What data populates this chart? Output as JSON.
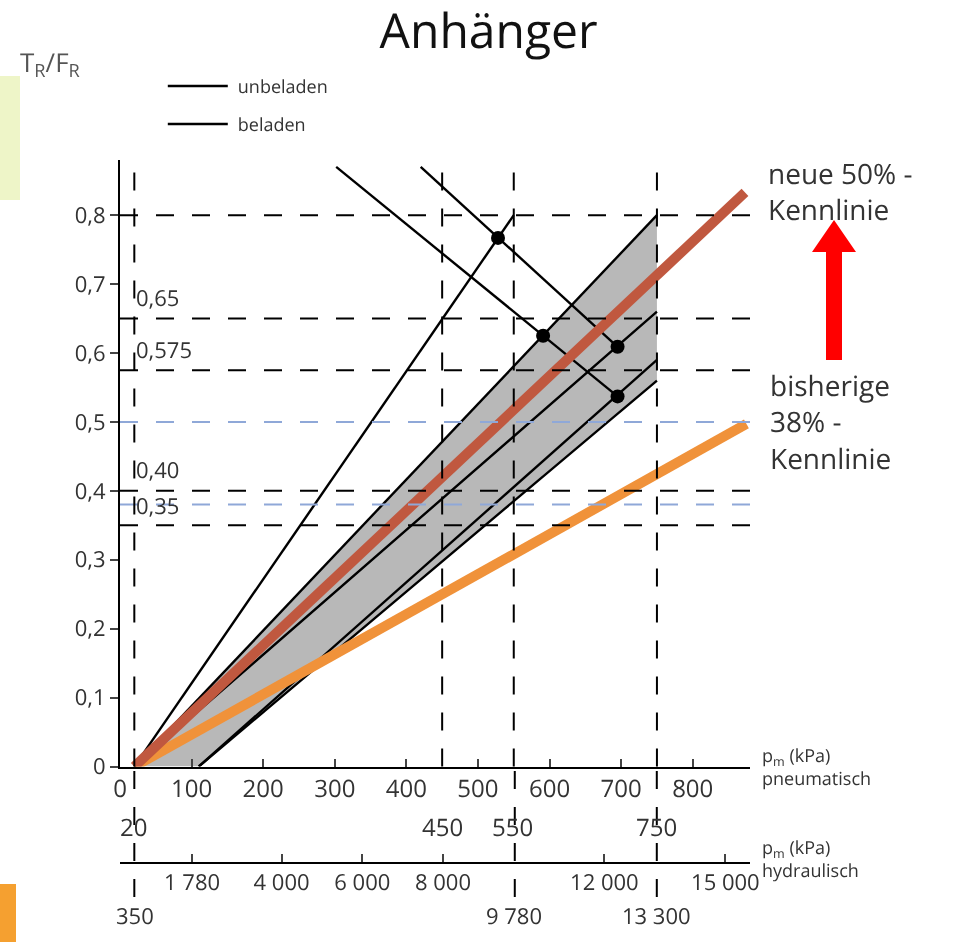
{
  "chart_data": {
    "type": "line",
    "title": "Anhänger",
    "ylabel": "T$_{R}$/F$_{R}$",
    "xlabel": "p$_{m}$ (kPa)\npneumatisch",
    "x2label": "p$_{m}$ (kPa)\nhydraulisch",
    "xlim": [
      0,
      880
    ],
    "xticks": [
      0,
      100,
      200,
      300,
      400,
      500,
      600,
      700,
      800
    ],
    "x2lim": [
      -5,
      15610
    ],
    "x2ticks": [
      {
        "value": 1780,
        "label": "1 780"
      },
      {
        "value": 4000,
        "label": "4 000"
      },
      {
        "value": 6000,
        "label": "6 000"
      },
      {
        "value": 8000,
        "label": "8 000"
      },
      {
        "value": 12000,
        "label": "12 000"
      },
      {
        "value": 15000,
        "label": "15 000"
      }
    ],
    "ylim": [
      0,
      0.88
    ],
    "yticks": [
      0,
      {
        "value": 0.1,
        "label": "0,1"
      },
      {
        "value": 0.2,
        "label": "0,2"
      },
      {
        "value": 0.3,
        "label": "0,3"
      },
      {
        "value": 0.4,
        "label": "0,4"
      },
      {
        "value": 0.5,
        "label": "0,5"
      },
      {
        "value": 0.6,
        "label": "0,6"
      },
      {
        "value": 0.7,
        "label": "0,7"
      },
      {
        "value": 0.8,
        "label": "0,8"
      }
    ],
    "grid": false,
    "legend": "top left",
    "ref_lines": [
      {
        "axis": "y",
        "value": 0.8,
        "color": "#000000",
        "line_style": "dashed"
      },
      {
        "axis": "y",
        "value": 0.65,
        "label": "0,65",
        "color": "#000000",
        "line_style": "dashed"
      },
      {
        "axis": "y",
        "value": 0.575,
        "label": "0,575",
        "color": "#000000",
        "line_style": "dashed"
      },
      {
        "axis": "y",
        "value": 0.5,
        "color": "#8fa8d8",
        "line_style": "dashed"
      },
      {
        "axis": "y",
        "value": 0.4,
        "label": "0,40",
        "color": "#000000",
        "line_style": "dashed"
      },
      {
        "axis": "y",
        "value": 0.38,
        "color": "#8fa8d8",
        "line_style": "dashed"
      },
      {
        "axis": "y",
        "value": 0.35,
        "label": "0,35",
        "color": "#000000",
        "line_style": "dashed"
      },
      {
        "axis": "x",
        "value": 20,
        "label": "20",
        "color": "#000000",
        "line_style": "dashed"
      },
      {
        "axis": "x",
        "value": 450,
        "label": "450",
        "color": "#000000",
        "line_style": "dashed"
      },
      {
        "axis": "x",
        "value": 550,
        "label": "550",
        "color": "#000000",
        "line_style": "dashed"
      },
      {
        "axis": "x",
        "value": 750,
        "label": "750",
        "color": "#000000",
        "line_style": "dashed"
      },
      {
        "axis": "x2",
        "value": 350,
        "label": "350",
        "color": "#000000",
        "line_style": "dashed"
      },
      {
        "axis": "x2",
        "value": 9780,
        "label": "9 780",
        "color": "#000000",
        "line_style": "dashed"
      },
      {
        "axis": "x2",
        "value": 13300,
        "label": "13 300",
        "color": "#000000",
        "line_style": "dashed"
      }
    ],
    "series": [
      {
        "name": "unbeladen",
        "color": "#000000",
        "x": [
          20,
          550
        ],
        "values": [
          0,
          0.8
        ]
      },
      {
        "name": "beladen",
        "color": "#000000",
        "x": [
          20,
          110,
          750
        ],
        "values": [
          0,
          0.081,
          0.66
        ],
        "lower": [
          0,
          0,
          0.56
        ],
        "upper": [
          0,
          0.099,
          0.8
        ]
      },
      {
        "color": "#000000",
        "x": [
          20,
          750
        ],
        "values": [
          0,
          0.8
        ]
      },
      {
        "color": "#000000",
        "x": [
          110,
          750
        ],
        "values": [
          0,
          0.56
        ]
      },
      {
        "color": "#000000",
        "x": [
          110,
          750
        ],
        "values": [
          0,
          0.59
        ]
      },
      {
        "color": "#000000",
        "x": [
          420,
          695
        ],
        "values": [
          0.87,
          0.609
        ]
      },
      {
        "color": "#000000",
        "x": [
          302,
          695
        ],
        "values": [
          0.87,
          0.537
        ]
      },
      {
        "type": "scatter",
        "color": "#000000",
        "marker": "circle",
        "x": [
          528,
          591,
          695,
          695
        ],
        "values": [
          0.767,
          0.625,
          0.609,
          0.537
        ]
      },
      {
        "name": "bisherige 38% - Kennlinie",
        "color": "#f0923a",
        "x": [
          20,
          875
        ],
        "values": [
          0,
          0.497
        ]
      },
      {
        "name": "neue 50% - Kennlinie",
        "color": "#c0583f",
        "x": [
          20,
          873
        ],
        "values": [
          0,
          0.833
        ]
      }
    ]
  }
}
